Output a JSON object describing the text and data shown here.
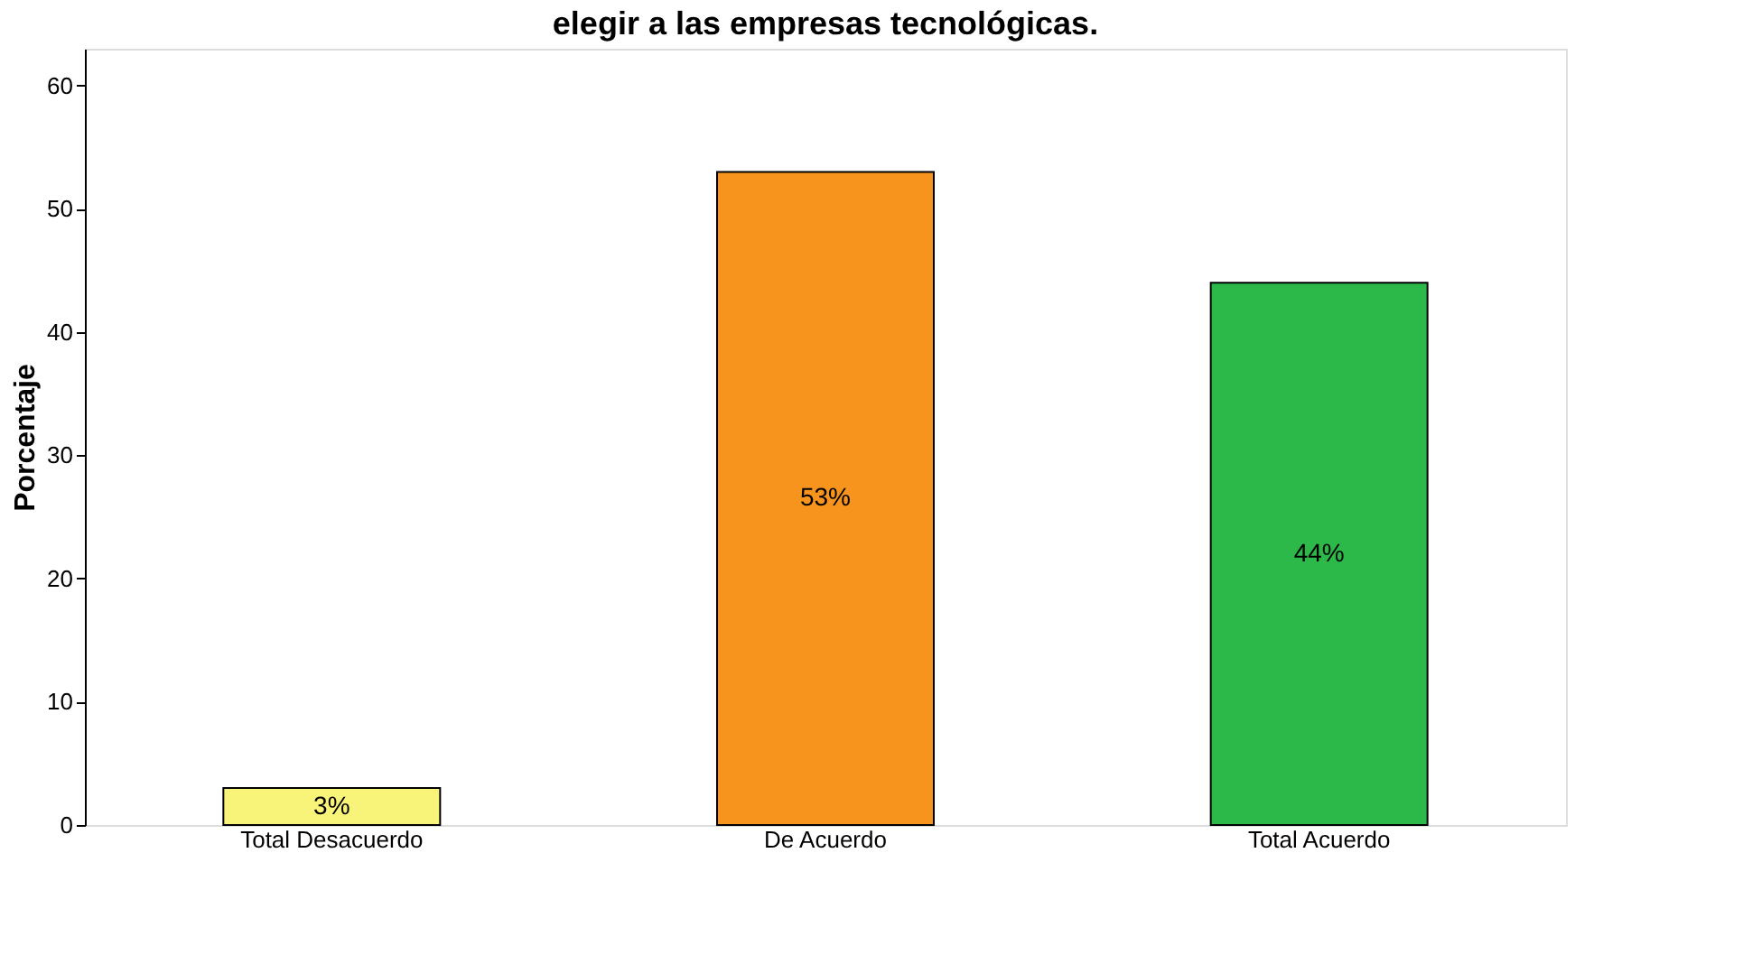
{
  "chart_data": {
    "type": "bar",
    "title": "elegir a las empresas tecnológicas.",
    "ylabel": "Porcentaje",
    "categories": [
      "Total Desacuerdo",
      "De Acuerdo",
      "Total Acuerdo"
    ],
    "values": [
      3,
      53,
      44
    ],
    "colors": [
      "#f8f47a",
      "#f7941d",
      "#2db84a"
    ],
    "value_labels": [
      "3%",
      "53%",
      "44%"
    ],
    "ylim": [
      0,
      63
    ],
    "yticks": [
      0,
      10,
      20,
      30,
      40,
      50,
      60
    ],
    "grid": false
  }
}
